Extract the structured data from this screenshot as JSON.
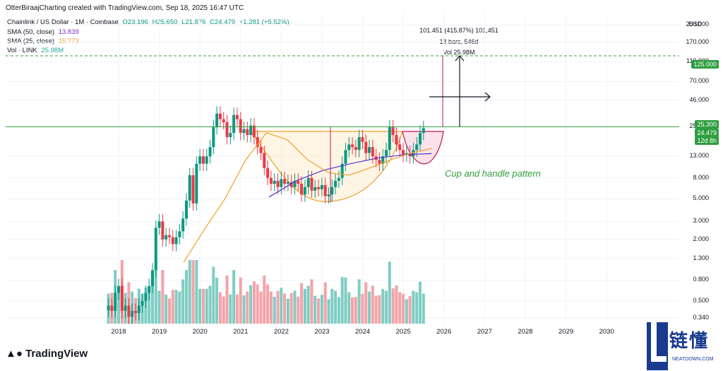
{
  "header": {
    "credit": "OtterBiraajCharting created with TradingView.com, Sep 18, 2025 16:47 UTC",
    "symbol": "Chainlink / US Dollar · 1M · Coinbase",
    "ohlc": {
      "o": "O23.196",
      "h": "H25.650",
      "l": "L21.876",
      "c": "C24.479",
      "chg": "+1.281 (+5.52%)"
    }
  },
  "legend": {
    "sma50": {
      "label": "SMA (50, close)",
      "value": "13.839",
      "color": "#7b2fcf"
    },
    "sma25": {
      "label": "SMA (25, close)",
      "value": "15.773",
      "color": "#f0a02a"
    },
    "vol": {
      "label": "Vol · LINK",
      "value": "25.98M",
      "color": "#26a69a"
    }
  },
  "measure": {
    "line1": "101.451 (415.87%) 101,451",
    "line2": "18 bars, 546d",
    "line3": "Vol 25.98M"
  },
  "price_tags": {
    "target": "125.000",
    "level": "25.300",
    "last": "24.479",
    "timer": "12d 8h"
  },
  "currency": "USD",
  "annotation": "Cup and handle pattern",
  "branding": {
    "tv": "TradingView",
    "watermark": "链懂",
    "watermark_sub": "NEATDOWN.COM"
  },
  "colors": {
    "up": "#089981",
    "down": "#f23645",
    "vol_up": "#7fcdc4",
    "vol_down": "#f4a3a8",
    "green_tag": "#2e9e3e"
  },
  "chart_data": {
    "type": "candlestick",
    "scale": "log",
    "ylim": [
      0.3,
      330
    ],
    "y_ticks": [
      "250.000",
      "170.000",
      "110.000",
      "70.000",
      "46.000",
      "25.300",
      "13.000",
      "8.000",
      "5.000",
      "3.000",
      "2.000",
      "1.300",
      "0.800",
      "0.500",
      "0.340"
    ],
    "y_tick_values": [
      250,
      170,
      110,
      70,
      46,
      25.3,
      13,
      8,
      5,
      3,
      2,
      1.3,
      0.8,
      0.5,
      0.34
    ],
    "x_ticks": [
      "2018",
      "2019",
      "2020",
      "2021",
      "2022",
      "2023",
      "2024",
      "2025",
      "2026",
      "2027",
      "2028",
      "2029",
      "2030"
    ],
    "x_tick_years": [
      2018,
      2019,
      2020,
      2021,
      2022,
      2023,
      2024,
      2025,
      2026,
      2027,
      2028,
      2029,
      2030
    ],
    "candles_close": [
      0.45,
      0.4,
      0.6,
      0.7,
      0.4,
      0.45,
      0.35,
      0.4,
      0.38,
      0.45,
      0.5,
      0.6,
      0.7,
      1.0,
      2.6,
      3.0,
      2.0,
      2.2,
      2.1,
      1.8,
      2.1,
      2.4,
      3.2,
      4.8,
      8.5,
      4.5,
      11.0,
      13.0,
      11.0,
      13.0,
      16.0,
      25.0,
      34.0,
      30.0,
      28.0,
      20.0,
      22.0,
      33.0,
      30.0,
      22.0,
      24.0,
      21.0,
      26.0,
      20.0,
      16.0,
      14.0,
      10.0,
      8.0,
      7.0,
      7.5,
      6.5,
      7.8,
      7.0,
      7.3,
      6.5,
      7.5,
      7.0,
      5.5,
      6.5,
      8.0,
      6.0,
      6.5,
      6.2,
      6.8,
      5.3,
      5.5,
      6.5,
      7.5,
      8.0,
      11.0,
      15.0,
      17.0,
      16.0,
      15.0,
      20.0,
      18.0,
      14.0,
      16.0,
      13.0,
      12.0,
      11.0,
      13.0,
      15.0,
      25.0,
      21.0,
      17.0,
      15.0,
      13.5,
      14.0,
      13.0,
      15.0,
      17.0,
      22.0,
      24.5
    ],
    "start_year": 2017.75,
    "step_years": 0.0833,
    "series": [
      {
        "name": "SMA (50, close)",
        "values": [
          5.2,
          7.5,
          9.5,
          11.0,
          12.5,
          13.5,
          13.8
        ]
      },
      {
        "name": "SMA (25, close)",
        "values": [
          1.2,
          2.5,
          5.0,
          12.0,
          22.0,
          19.0,
          12.0,
          9.0,
          8.5,
          10.0,
          12.0,
          14.0,
          15.5
        ]
      }
    ],
    "levels": [
      125,
      25.3
    ],
    "events": [
      "Cup and handle pattern"
    ]
  }
}
